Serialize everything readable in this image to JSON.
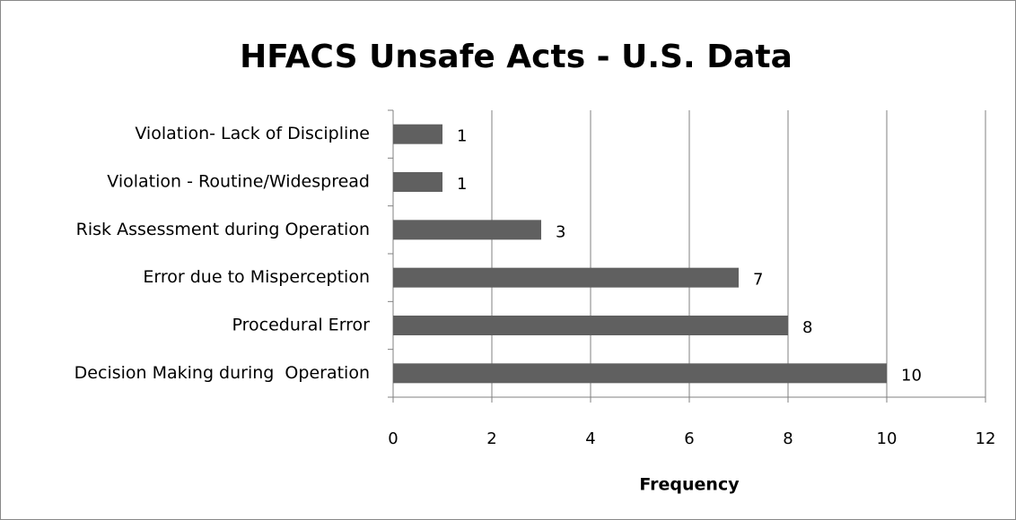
{
  "chart_data": {
    "type": "barh",
    "title": "HFACS Unsafe Acts - U.S. Data",
    "categories": [
      "Violation- Lack of Discipline",
      "Violation - Routine/Widespread",
      "Risk Assessment during Operation",
      "Error due to Misperception",
      "Procedural Error",
      "Decision Making during  Operation"
    ],
    "values": [
      1,
      1,
      3,
      7,
      8,
      10
    ],
    "color": "#606060",
    "x_label": "Frequency",
    "xlim": [
      0,
      12
    ],
    "xticks": [
      0,
      2,
      4,
      6,
      8,
      10,
      12
    ],
    "grid": true
  }
}
